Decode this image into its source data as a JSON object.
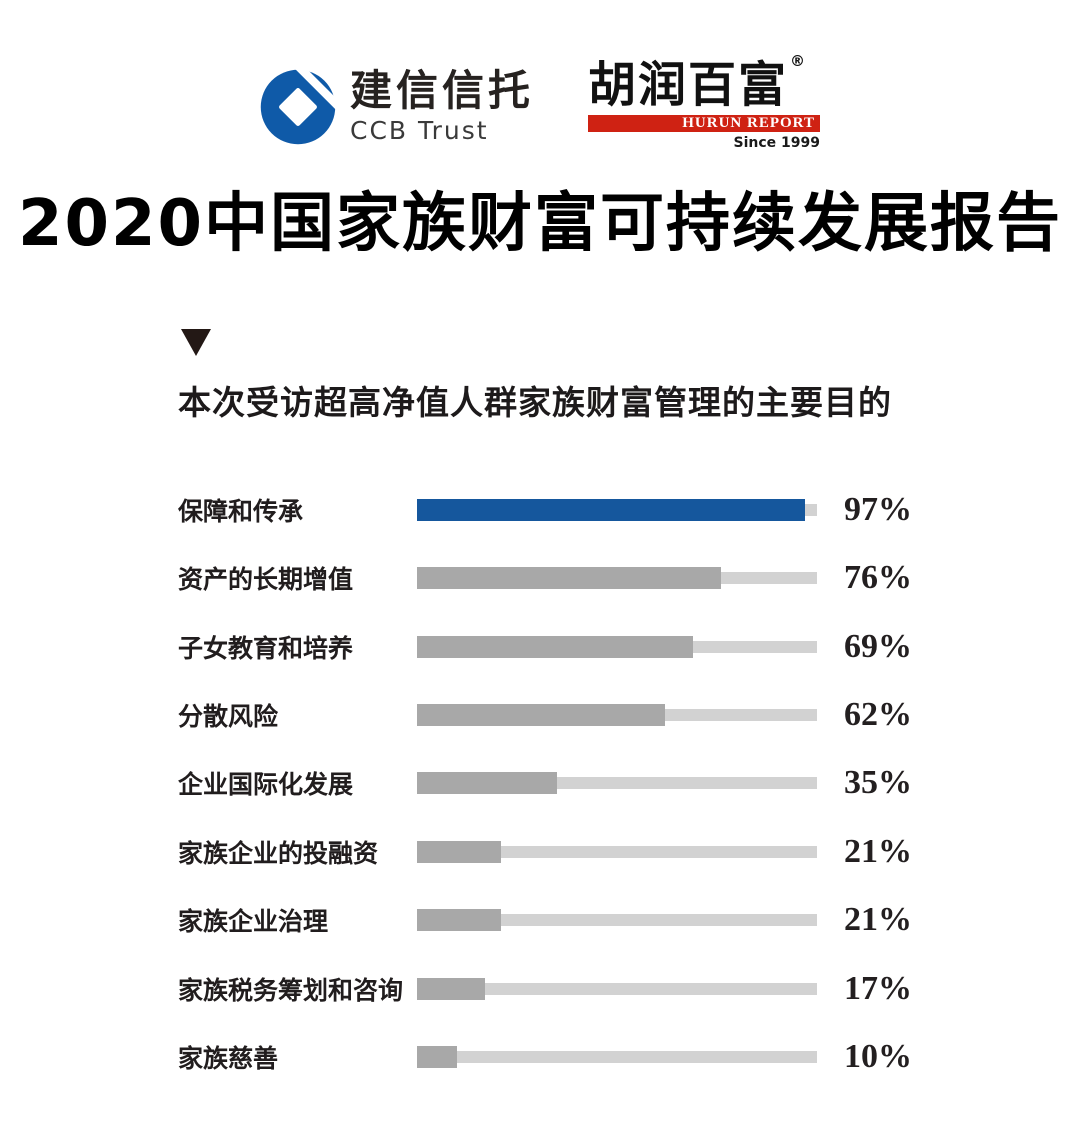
{
  "header": {
    "ccb_logo": {
      "cn": "建信信托",
      "en": "CCB Trust",
      "brand_color": "#0f5aa8"
    },
    "hurun_logo": {
      "cn": "胡润百富",
      "reg_mark": "®",
      "en": "HURUN REPORT",
      "since": "Since 1999",
      "brand_color": "#cf2213"
    }
  },
  "title": "2020中国家族财富可持续发展报告",
  "section": {
    "subtitle": "本次受访超高净值人群家族财富管理的主要目的"
  },
  "chart_data": {
    "type": "bar",
    "orientation": "horizontal",
    "title": "本次受访超高净值人群家族财富管理的主要目的",
    "categories": [
      "保障和传承",
      "资产的长期增值",
      "子女教育和培养",
      "分散风险",
      "企业国际化发展",
      "家族企业的投融资",
      "家族企业治理",
      "家族税务筹划和咨询",
      "家族慈善"
    ],
    "values": [
      97,
      76,
      69,
      62,
      35,
      21,
      21,
      17,
      10
    ],
    "value_labels": [
      "97%",
      "76%",
      "69%",
      "62%",
      "35%",
      "21%",
      "21%",
      "17%",
      "10%"
    ],
    "xlim": [
      0,
      100
    ],
    "grid": false,
    "legend": false,
    "highlight_index": 0,
    "highlight_color": "#15579d",
    "bar_color": "#a8a8a8",
    "track_color": "#d2d2d2"
  }
}
